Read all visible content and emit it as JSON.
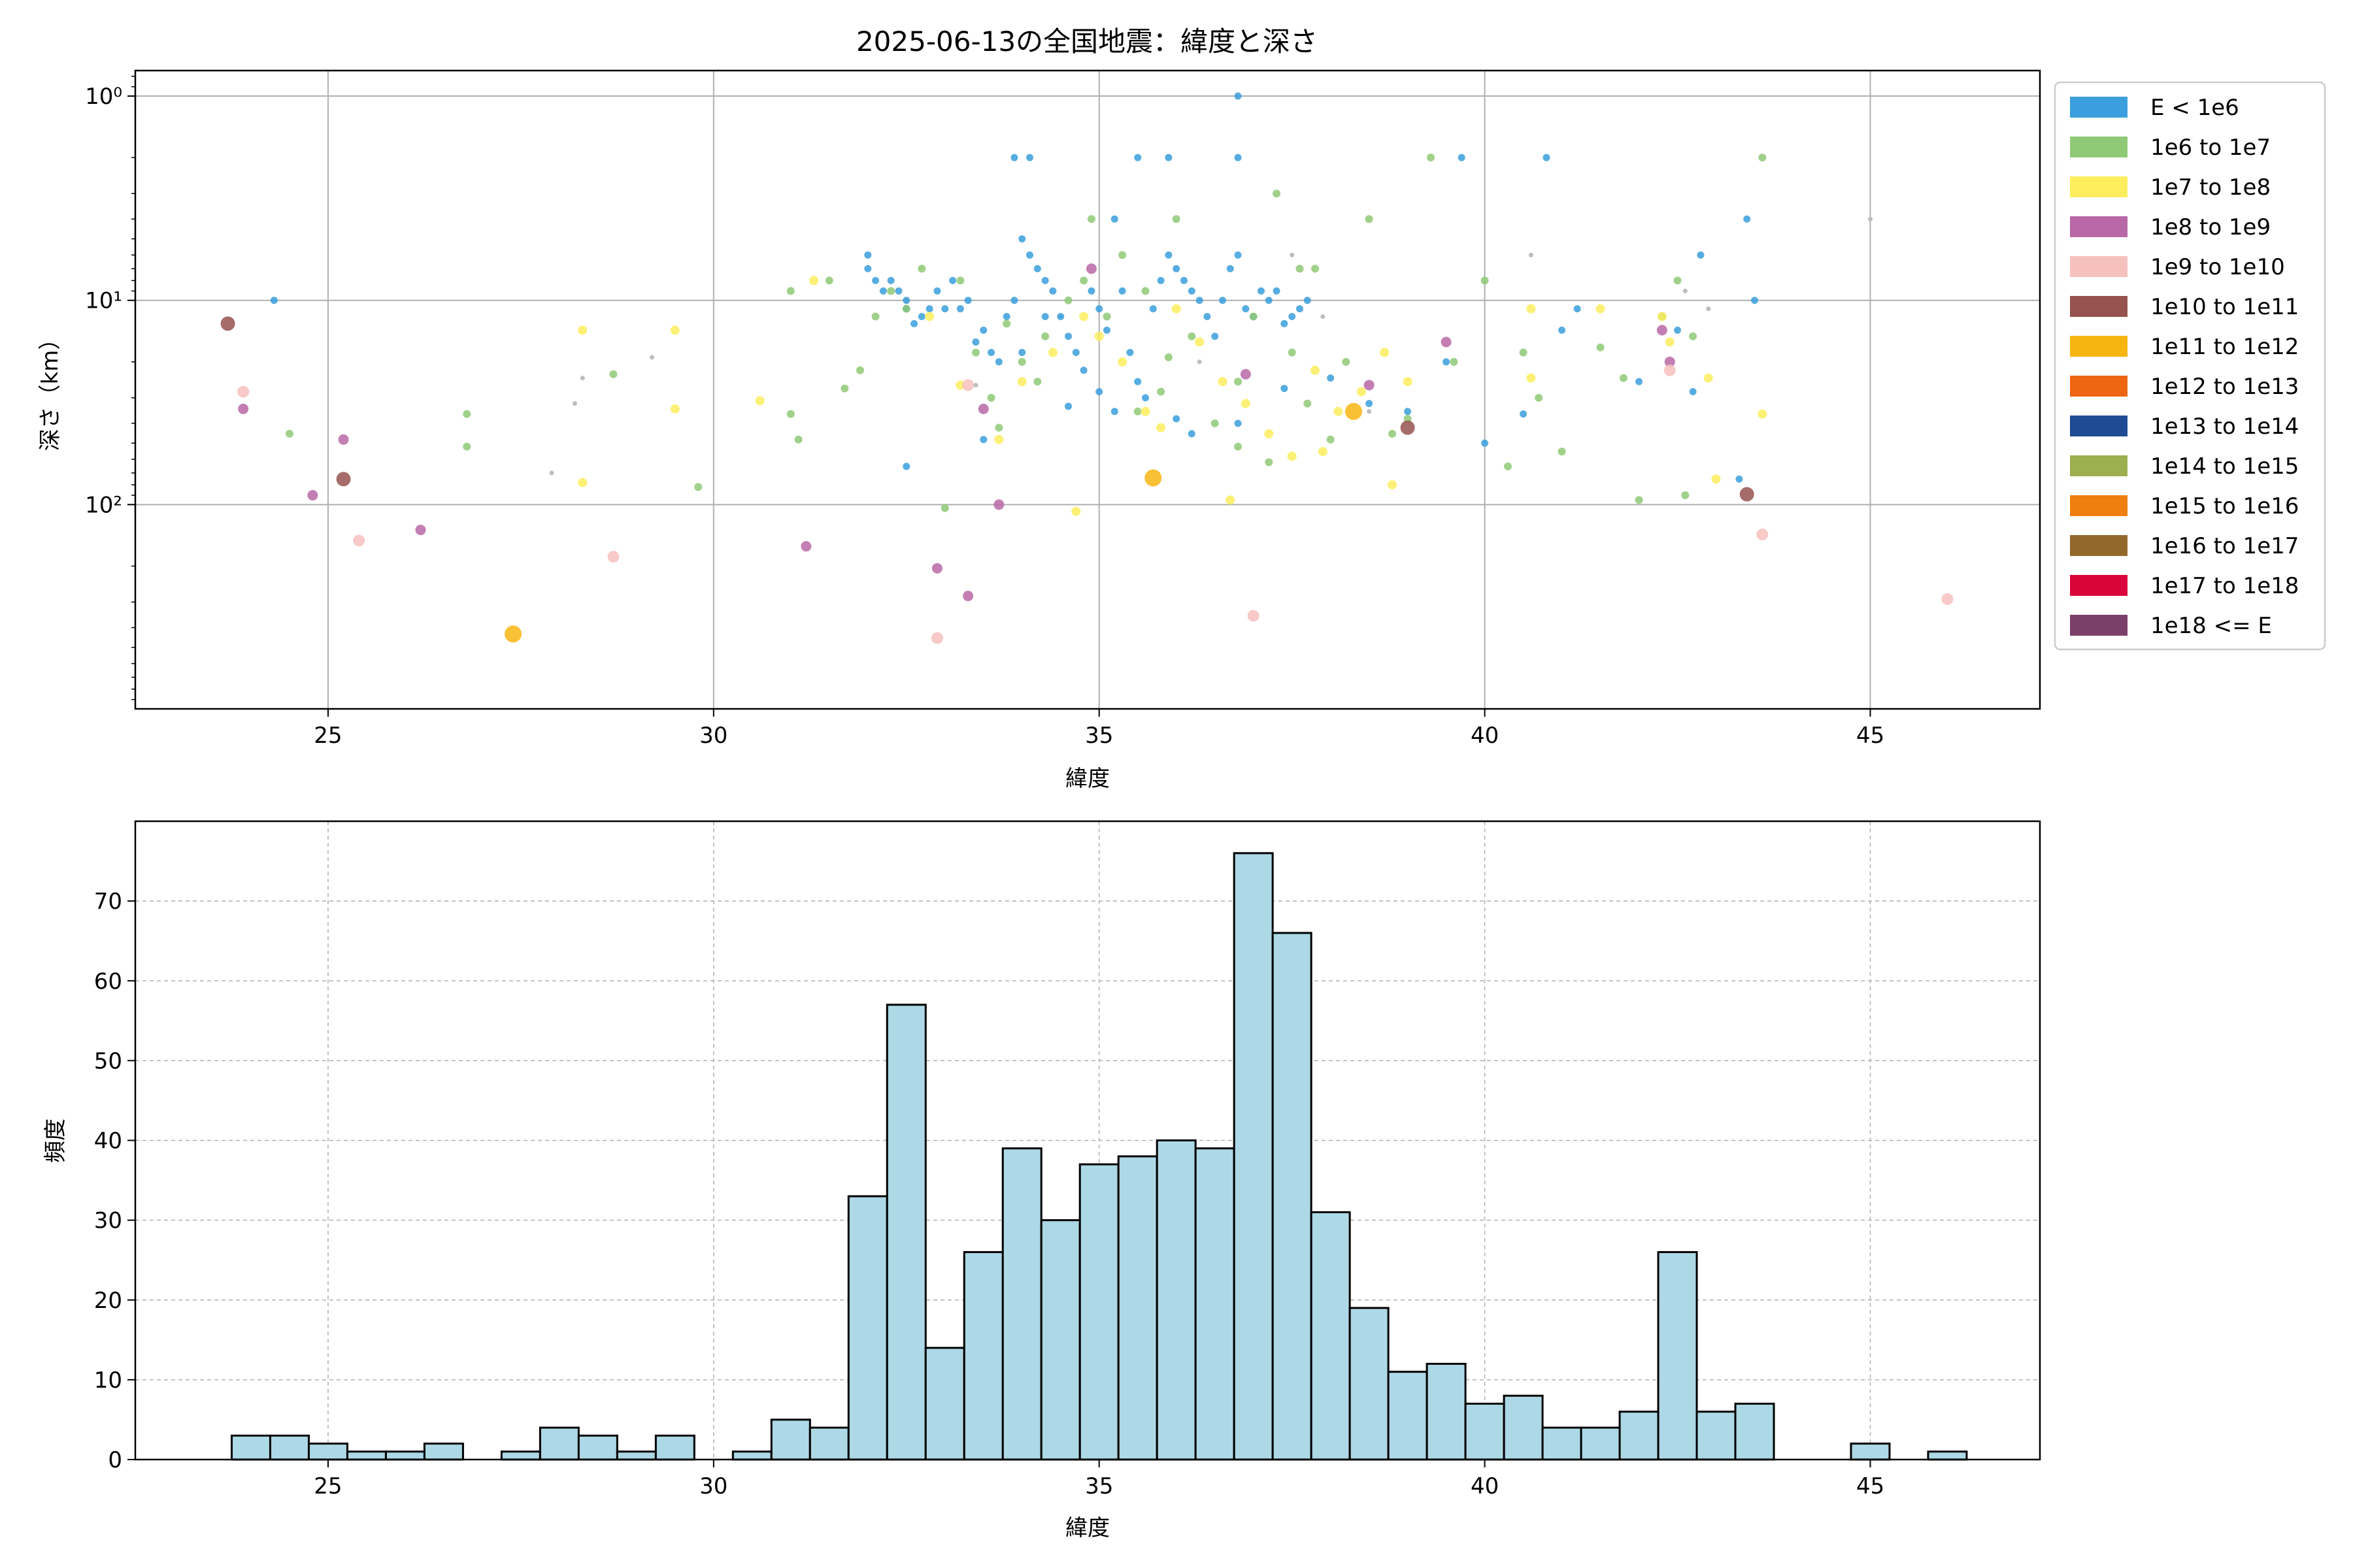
{
  "figure": {
    "title": "2025-06-13の全国地震：緯度と深さ"
  },
  "chart_data": [
    {
      "type": "scatter",
      "title": "2025-06-13の全国地震：緯度と深さ",
      "xlabel": "緯度",
      "ylabel": "深さ（km）",
      "xlim": [
        22.5,
        47.2
      ],
      "ylim": [
        1000,
        0.75
      ],
      "yscale": "log",
      "y_inverted": true,
      "grid": true,
      "legend_position": "outside-right",
      "xticks": [
        25,
        30,
        35,
        40,
        45
      ],
      "xtick_labels": [
        "25",
        "30",
        "35",
        "40",
        "45"
      ],
      "yticks": [
        1,
        10,
        100
      ],
      "ytick_labels": [
        "10⁰",
        "10¹",
        "10²"
      ],
      "legend": [
        {
          "label": "E < 1e6",
          "color": "#3a9fdc"
        },
        {
          "label": "1e6 to 1e7",
          "color": "#8fc976"
        },
        {
          "label": "1e7 to 1e8",
          "color": "#fced5e"
        },
        {
          "label": "1e8 to 1e9",
          "color": "#b868a6"
        },
        {
          "label": "1e9 to 1e10",
          "color": "#f6c1bd"
        },
        {
          "label": "1e10 to 1e11",
          "color": "#96524f"
        },
        {
          "label": "1e11 to 1e12",
          "color": "#f7b511"
        },
        {
          "label": "1e12 to 1e13",
          "color": "#ee6611"
        },
        {
          "label": "1e13 to 1e14",
          "color": "#1e4b93"
        },
        {
          "label": "1e14 to 1e15",
          "color": "#9daf4f"
        },
        {
          "label": "1e15 to 1e16",
          "color": "#ef7f10"
        },
        {
          "label": "1e16 to 1e17",
          "color": "#93692b"
        },
        {
          "label": "1e17 to 1e18",
          "color": "#d9043a"
        },
        {
          "label": "1e18 <= E",
          "color": "#7b3f6c"
        }
      ],
      "series": [
        {
          "class": 0,
          "points": [
            [
              24.3,
              10
            ],
            [
              32.0,
              6
            ],
            [
              32.0,
              7
            ],
            [
              32.1,
              8
            ],
            [
              32.2,
              9
            ],
            [
              32.3,
              8
            ],
            [
              32.4,
              9
            ],
            [
              32.5,
              11
            ],
            [
              32.5,
              10
            ],
            [
              32.6,
              13
            ],
            [
              32.7,
              12
            ],
            [
              32.8,
              11
            ],
            [
              32.9,
              9
            ],
            [
              33.0,
              11
            ],
            [
              33.1,
              8
            ],
            [
              33.2,
              11
            ],
            [
              33.3,
              10
            ],
            [
              33.4,
              16
            ],
            [
              33.5,
              14
            ],
            [
              33.6,
              18
            ],
            [
              33.7,
              20
            ],
            [
              33.8,
              12
            ],
            [
              33.9,
              10
            ],
            [
              34.0,
              5
            ],
            [
              34.1,
              6
            ],
            [
              34.2,
              7
            ],
            [
              34.3,
              8
            ],
            [
              34.4,
              9
            ],
            [
              34.5,
              12
            ],
            [
              34.6,
              15
            ],
            [
              34.7,
              18
            ],
            [
              34.8,
              22
            ],
            [
              34.9,
              9
            ],
            [
              35.0,
              11
            ],
            [
              35.1,
              14
            ],
            [
              35.2,
              4
            ],
            [
              35.3,
              9
            ],
            [
              35.4,
              18
            ],
            [
              35.5,
              25
            ],
            [
              35.6,
              30
            ],
            [
              35.7,
              11
            ],
            [
              35.8,
              8
            ],
            [
              35.9,
              6
            ],
            [
              36.0,
              7
            ],
            [
              36.1,
              8
            ],
            [
              36.2,
              9
            ],
            [
              36.3,
              10
            ],
            [
              36.4,
              12
            ],
            [
              36.5,
              15
            ],
            [
              36.6,
              10
            ],
            [
              36.7,
              7
            ],
            [
              36.8,
              6
            ],
            [
              36.9,
              11
            ],
            [
              37.0,
              12
            ],
            [
              37.1,
              9
            ],
            [
              37.2,
              10
            ],
            [
              37.3,
              9
            ],
            [
              37.4,
              13
            ],
            [
              37.5,
              12
            ],
            [
              37.6,
              11
            ],
            [
              37.7,
              10
            ],
            [
              38.0,
              24
            ],
            [
              38.5,
              32
            ],
            [
              39.0,
              35
            ],
            [
              39.5,
              20
            ],
            [
              40.0,
              50
            ],
            [
              40.5,
              36
            ],
            [
              41.0,
              14
            ],
            [
              41.2,
              11
            ],
            [
              42.0,
              25
            ],
            [
              42.5,
              14
            ],
            [
              42.7,
              28
            ],
            [
              42.8,
              6
            ],
            [
              43.3,
              75
            ],
            [
              43.4,
              4
            ],
            [
              43.5,
              10
            ],
            [
              33.9,
              2
            ],
            [
              34.1,
              2
            ],
            [
              35.5,
              2
            ],
            [
              35.9,
              2
            ],
            [
              36.8,
              2
            ],
            [
              39.7,
              2
            ],
            [
              40.8,
              2
            ],
            [
              36.8,
              1
            ],
            [
              34.0,
              18
            ],
            [
              34.3,
              12
            ],
            [
              34.6,
              33
            ],
            [
              35.0,
              28
            ],
            [
              36.2,
              45
            ],
            [
              36.8,
              40
            ],
            [
              37.4,
              27
            ],
            [
              33.5,
              48
            ],
            [
              35.2,
              35
            ],
            [
              32.5,
              65
            ],
            [
              36.0,
              38
            ]
          ]
        },
        {
          "class": 1,
          "points": [
            [
              24.5,
              45
            ],
            [
              26.8,
              36
            ],
            [
              26.8,
              52
            ],
            [
              28.7,
              23
            ],
            [
              29.8,
              82
            ],
            [
              31.0,
              9
            ],
            [
              31.0,
              36
            ],
            [
              31.1,
              48
            ],
            [
              31.5,
              8
            ],
            [
              31.7,
              27
            ],
            [
              31.9,
              22
            ],
            [
              32.1,
              12
            ],
            [
              32.3,
              9
            ],
            [
              32.5,
              11
            ],
            [
              32.7,
              7
            ],
            [
              33.0,
              104
            ],
            [
              33.2,
              8
            ],
            [
              33.4,
              18
            ],
            [
              33.6,
              30
            ],
            [
              33.8,
              13
            ],
            [
              34.0,
              20
            ],
            [
              34.3,
              15
            ],
            [
              34.6,
              10
            ],
            [
              34.8,
              8
            ],
            [
              35.1,
              12
            ],
            [
              35.3,
              6
            ],
            [
              35.6,
              9
            ],
            [
              35.9,
              19
            ],
            [
              36.2,
              15
            ],
            [
              36.5,
              40
            ],
            [
              36.8,
              25
            ],
            [
              37.0,
              12
            ],
            [
              37.3,
              3
            ],
            [
              37.5,
              18
            ],
            [
              37.8,
              7
            ],
            [
              38.2,
              20
            ],
            [
              38.5,
              4
            ],
            [
              38.8,
              45
            ],
            [
              39.0,
              38
            ],
            [
              39.3,
              2
            ],
            [
              39.6,
              20
            ],
            [
              40.0,
              8
            ],
            [
              40.3,
              65
            ],
            [
              40.5,
              18
            ],
            [
              40.7,
              30
            ],
            [
              41.0,
              55
            ],
            [
              41.5,
              17
            ],
            [
              41.8,
              24
            ],
            [
              42.0,
              95
            ],
            [
              42.3,
              12
            ],
            [
              42.5,
              8
            ],
            [
              42.6,
              90
            ],
            [
              42.7,
              15
            ],
            [
              43.6,
              2
            ],
            [
              34.9,
              4
            ],
            [
              36.0,
              4
            ],
            [
              37.6,
              7
            ],
            [
              37.7,
              32
            ],
            [
              38.0,
              48
            ],
            [
              35.5,
              35
            ],
            [
              36.8,
              52
            ],
            [
              37.2,
              62
            ],
            [
              34.2,
              25
            ],
            [
              33.7,
              42
            ],
            [
              35.8,
              28
            ]
          ]
        },
        {
          "class": 2,
          "points": [
            [
              28.3,
              14
            ],
            [
              28.3,
              78
            ],
            [
              29.5,
              14
            ],
            [
              29.5,
              34
            ],
            [
              30.6,
              31
            ],
            [
              31.3,
              8
            ],
            [
              32.8,
              12
            ],
            [
              33.2,
              26
            ],
            [
              33.7,
              48
            ],
            [
              34.0,
              25
            ],
            [
              34.4,
              18
            ],
            [
              34.8,
              12
            ],
            [
              35.0,
              15
            ],
            [
              35.3,
              20
            ],
            [
              35.6,
              35
            ],
            [
              35.8,
              42
            ],
            [
              36.0,
              11
            ],
            [
              36.3,
              16
            ],
            [
              36.6,
              25
            ],
            [
              36.9,
              32
            ],
            [
              37.2,
              45
            ],
            [
              37.5,
              58
            ],
            [
              37.8,
              22
            ],
            [
              38.1,
              35
            ],
            [
              38.4,
              28
            ],
            [
              38.7,
              18
            ],
            [
              39.0,
              25
            ],
            [
              40.6,
              11
            ],
            [
              40.6,
              24
            ],
            [
              41.5,
              11
            ],
            [
              42.3,
              12
            ],
            [
              42.4,
              16
            ],
            [
              42.9,
              24
            ],
            [
              43.0,
              75
            ],
            [
              43.6,
              36
            ],
            [
              34.7,
              108
            ],
            [
              36.7,
              95
            ],
            [
              38.8,
              80
            ],
            [
              37.9,
              55
            ]
          ]
        },
        {
          "class": 3,
          "points": [
            [
              23.9,
              34
            ],
            [
              25.2,
              48
            ],
            [
              24.8,
              90
            ],
            [
              26.2,
              133
            ],
            [
              31.2,
              160
            ],
            [
              32.9,
              205
            ],
            [
              33.3,
              280
            ],
            [
              33.5,
              34
            ],
            [
              33.7,
              100
            ],
            [
              34.9,
              7
            ],
            [
              36.9,
              23
            ],
            [
              38.5,
              26
            ],
            [
              39.5,
              16
            ],
            [
              42.3,
              14
            ],
            [
              42.4,
              20
            ]
          ]
        },
        {
          "class": 4,
          "points": [
            [
              23.9,
              28
            ],
            [
              25.4,
              150
            ],
            [
              28.7,
              180
            ],
            [
              32.9,
              450
            ],
            [
              33.3,
              26
            ],
            [
              37.0,
              350
            ],
            [
              42.4,
              22
            ],
            [
              43.6,
              140
            ],
            [
              46.0,
              290
            ]
          ]
        },
        {
          "class": 5,
          "points": [
            [
              23.7,
              13
            ],
            [
              25.2,
              75
            ],
            [
              39.0,
              42
            ],
            [
              43.4,
              89
            ]
          ]
        },
        {
          "class": 6,
          "points": [
            [
              27.4,
              430
            ],
            [
              35.7,
              74
            ],
            [
              38.3,
              35
            ]
          ]
        }
      ],
      "minor_points": [
        [
          27.9,
          70
        ],
        [
          28.2,
          32
        ],
        [
          28.3,
          24
        ],
        [
          29.2,
          19
        ],
        [
          32.5,
          10
        ],
        [
          33.4,
          26
        ],
        [
          37.5,
          6
        ],
        [
          37.9,
          12
        ],
        [
          38.5,
          35
        ],
        [
          40.6,
          6
        ],
        [
          42.6,
          9
        ],
        [
          42.9,
          11
        ],
        [
          45.0,
          4
        ],
        [
          34.5,
          12
        ],
        [
          36.3,
          20
        ]
      ]
    },
    {
      "type": "bar",
      "title": "",
      "xlabel": "緯度",
      "ylabel": "頻度",
      "xlim": [
        22.5,
        47.2
      ],
      "ylim": [
        0,
        80
      ],
      "grid": true,
      "bar_color": "#add8e6",
      "edge_color": "#000000",
      "xticks": [
        25,
        30,
        35,
        40,
        45
      ],
      "xtick_labels": [
        "25",
        "30",
        "35",
        "40",
        "45"
      ],
      "yticks": [
        0,
        10,
        20,
        30,
        40,
        50,
        60,
        70
      ],
      "ytick_labels": [
        "0",
        "10",
        "20",
        "30",
        "40",
        "50",
        "60",
        "70"
      ],
      "bin_start": 23.75,
      "bin_width": 0.5,
      "values": [
        3,
        3,
        2,
        1,
        1,
        2,
        0,
        1,
        4,
        3,
        1,
        3,
        0,
        1,
        5,
        4,
        33,
        57,
        14,
        26,
        39,
        30,
        37,
        38,
        40,
        39,
        76,
        66,
        31,
        19,
        11,
        12,
        7,
        8,
        4,
        4,
        6,
        26,
        6,
        7,
        0,
        0,
        2,
        0,
        1
      ]
    }
  ]
}
